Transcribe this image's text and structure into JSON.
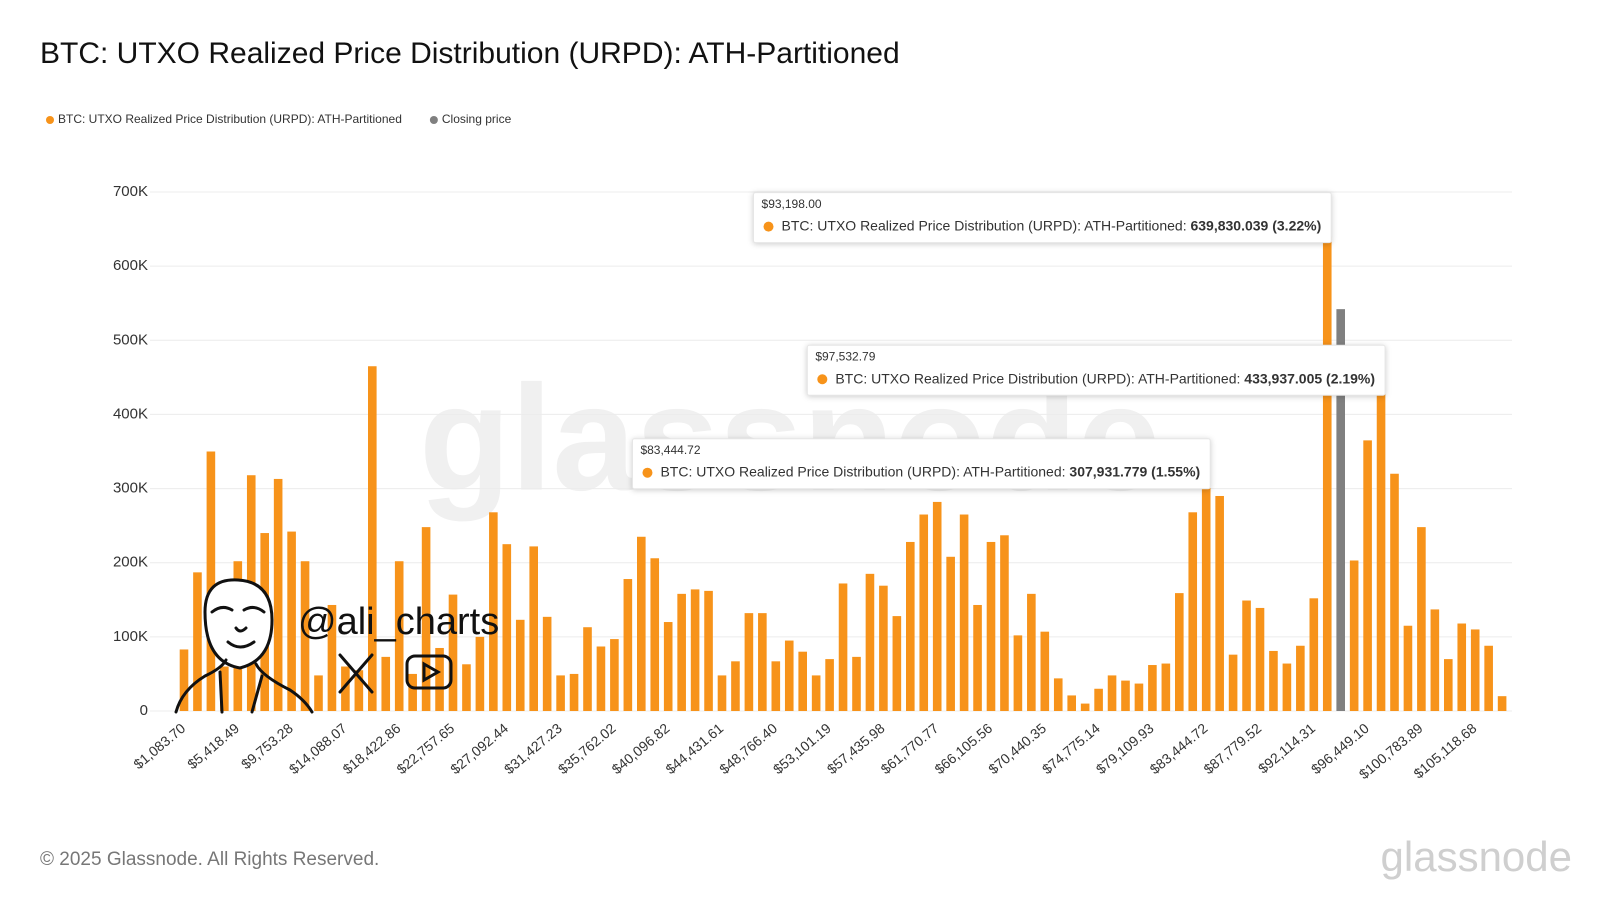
{
  "chart_data": {
    "type": "bar",
    "title": "BTC: UTXO Realized Price Distribution (URPD): ATH-Partitioned",
    "categories": [
      "$1,083.70",
      null,
      null,
      null,
      "$5,418.49",
      null,
      null,
      null,
      "$9,753.28",
      null,
      null,
      null,
      "$14,088.07",
      null,
      null,
      null,
      "$18,422.86",
      null,
      null,
      null,
      "$22,757.65",
      null,
      null,
      null,
      "$27,092.44",
      null,
      null,
      null,
      "$31,427.23",
      null,
      null,
      null,
      "$35,762.02",
      null,
      null,
      null,
      "$40,096.82",
      null,
      null,
      null,
      "$44,431.61",
      null,
      null,
      null,
      "$48,766.40",
      null,
      null,
      null,
      "$53,101.19",
      null,
      null,
      null,
      "$57,435.98",
      null,
      null,
      null,
      "$61,770.77",
      null,
      null,
      null,
      "$66,105.56",
      null,
      null,
      null,
      "$70,440.35",
      null,
      null,
      null,
      "$74,775.14",
      null,
      null,
      null,
      "$79,109.93",
      null,
      null,
      null,
      "$83,444.72",
      null,
      null,
      null,
      "$87,779.52",
      null,
      null,
      null,
      "$92,114.31",
      null,
      null,
      null,
      "$96,449.10",
      null,
      null,
      null,
      "$100,783.89",
      null,
      null,
      null,
      "$105,118.68",
      null,
      null
    ],
    "series": [
      {
        "name": "BTC: UTXO Realized Price Distribution (URPD): ATH-Partitioned",
        "color": "#f7931a",
        "tooltip_label": "BTC: UTXO Realized Price Distribution (URPD): ATH-Partitioned:",
        "values": [
          83000,
          187000,
          350000,
          60000,
          202000,
          318000,
          240000,
          313000,
          242000,
          202000,
          48000,
          143000,
          60000,
          55000,
          465000,
          73000,
          202000,
          50000,
          248000,
          85000,
          157000,
          63000,
          100000,
          268000,
          225000,
          123000,
          222000,
          127000,
          48000,
          50000,
          113000,
          87000,
          97000,
          178000,
          235000,
          206000,
          120000,
          158000,
          164000,
          162000,
          48000,
          67000,
          132000,
          132000,
          67000,
          95000,
          80000,
          48000,
          70000,
          172000,
          73000,
          185000,
          169000,
          128000,
          228000,
          265000,
          282000,
          208000,
          265000,
          143000,
          228000,
          237000,
          102000,
          158000,
          107000,
          44000,
          21000,
          10000,
          30000,
          48000,
          41000,
          37000,
          62000,
          64000,
          159000,
          268000,
          307931.779,
          290000,
          76000,
          149000,
          139000,
          81000,
          64000,
          88000,
          152000,
          639830.039,
          null,
          203000,
          365000,
          433937.005,
          320000,
          115000,
          248000,
          137000,
          70000,
          118000,
          110000,
          88000,
          20000
        ],
        "value_labels": [
          null,
          null,
          null,
          null,
          null,
          null,
          null,
          null,
          null,
          null,
          null,
          null,
          null,
          null,
          null,
          null,
          null,
          null,
          null,
          null,
          null,
          null,
          null,
          null,
          null,
          null,
          null,
          null,
          null,
          null,
          null,
          null,
          null,
          null,
          null,
          null,
          null,
          null,
          null,
          null,
          null,
          null,
          null,
          null,
          null,
          null,
          null,
          null,
          null,
          null,
          null,
          null,
          null,
          null,
          null,
          null,
          null,
          null,
          null,
          null,
          null,
          null,
          null,
          null,
          null,
          null,
          null,
          null,
          null,
          null,
          null,
          null,
          null,
          null,
          null,
          null,
          "307,931.779 (1.55%)",
          null,
          null,
          null,
          null,
          null,
          null,
          null,
          null,
          "639,830.039 (3.22%)",
          null,
          null,
          null,
          "433,937.005 (2.19%)",
          null,
          null,
          null,
          null,
          null,
          null,
          null,
          null,
          null
        ],
        "tooltip_titles": [
          null,
          null,
          null,
          null,
          null,
          null,
          null,
          null,
          null,
          null,
          null,
          null,
          null,
          null,
          null,
          null,
          null,
          null,
          null,
          null,
          null,
          null,
          null,
          null,
          null,
          null,
          null,
          null,
          null,
          null,
          null,
          null,
          null,
          null,
          null,
          null,
          null,
          null,
          null,
          null,
          null,
          null,
          null,
          null,
          null,
          null,
          null,
          null,
          null,
          null,
          null,
          null,
          null,
          null,
          null,
          null,
          null,
          null,
          null,
          null,
          null,
          null,
          null,
          null,
          null,
          null,
          null,
          null,
          null,
          null,
          null,
          null,
          null,
          null,
          null,
          null,
          "$83,444.72",
          null,
          null,
          null,
          null,
          null,
          null,
          null,
          null,
          "$93,198.00",
          null,
          null,
          null,
          "$97,532.79",
          null,
          null,
          null,
          null,
          null,
          null,
          null,
          null,
          null
        ]
      },
      {
        "name": "Closing price",
        "color": "#808080",
        "values": [
          null,
          null,
          null,
          null,
          null,
          null,
          null,
          null,
          null,
          null,
          null,
          null,
          null,
          null,
          null,
          null,
          null,
          null,
          null,
          null,
          null,
          null,
          null,
          null,
          null,
          null,
          null,
          null,
          null,
          null,
          null,
          null,
          null,
          null,
          null,
          null,
          null,
          null,
          null,
          null,
          null,
          null,
          null,
          null,
          null,
          null,
          null,
          null,
          null,
          null,
          null,
          null,
          null,
          null,
          null,
          null,
          null,
          null,
          null,
          null,
          null,
          null,
          null,
          null,
          null,
          null,
          null,
          null,
          null,
          null,
          null,
          null,
          null,
          null,
          null,
          null,
          null,
          null,
          null,
          null,
          null,
          null,
          null,
          null,
          null,
          null,
          542000,
          null,
          null,
          null,
          null,
          null,
          null,
          null,
          null,
          null,
          null,
          null,
          null
        ]
      }
    ],
    "ylim": [
      0,
      700000
    ],
    "yticks": [
      {
        "value": 0,
        "label": "0"
      },
      {
        "value": 100000,
        "label": "100K"
      },
      {
        "value": 200000,
        "label": "200K"
      },
      {
        "value": 300000,
        "label": "300K"
      },
      {
        "value": 400000,
        "label": "400K"
      },
      {
        "value": 500000,
        "label": "500K"
      },
      {
        "value": 600000,
        "label": "600K"
      },
      {
        "value": 700000,
        "label": "700K"
      }
    ],
    "grid": true,
    "legend": "top-left",
    "watermark": "glassnode",
    "credit": "@ali_charts",
    "copyright": "© 2025 Glassnode. All Rights Reserved.",
    "logo": "glassnode"
  }
}
